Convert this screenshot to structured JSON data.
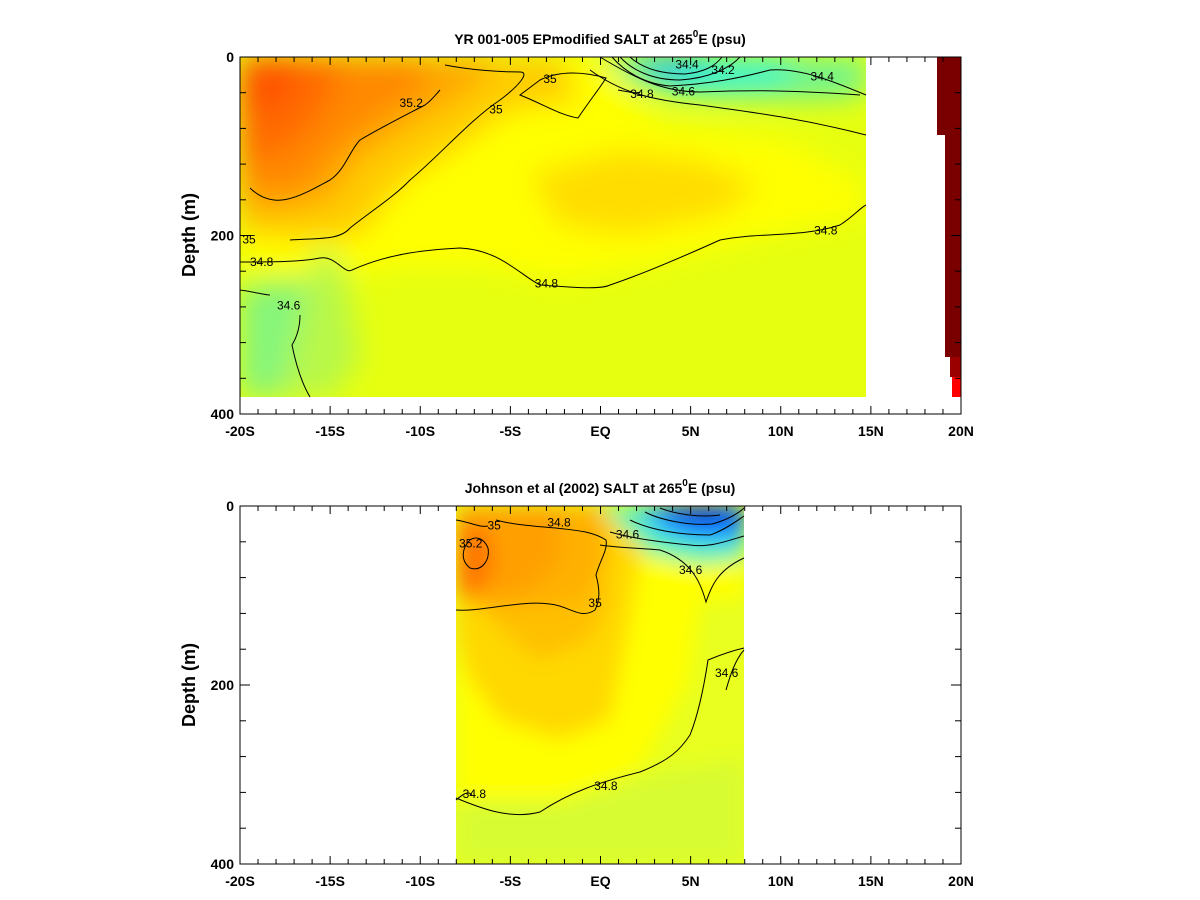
{
  "chart_data": [
    {
      "type": "heatmap",
      "title_prefix": "YR 001-005 EPmodified SALT at 265",
      "title_sup": "0",
      "title_suffix": "E (psu)",
      "ylabel": "Depth (m)",
      "xlim": [
        -20,
        20
      ],
      "ylim": [
        0,
        400
      ],
      "x_ticks": [
        "-20S",
        "-15S",
        "-10S",
        "-5S",
        "EQ",
        "5N",
        "10N",
        "15N",
        "20N"
      ],
      "x_tick_values": [
        -20,
        -15,
        -10,
        -5,
        0,
        5,
        10,
        15,
        20
      ],
      "y_ticks": [
        "0",
        "200",
        "400"
      ],
      "y_tick_values": [
        0,
        200,
        400
      ],
      "data_extent_lat": [
        -20,
        15
      ],
      "data_extent_depth": [
        0,
        380
      ],
      "contour_labels": [
        {
          "text": "35.2",
          "lat": -10.5,
          "depth": 55
        },
        {
          "text": "35",
          "lat": -2.8,
          "depth": 28
        },
        {
          "text": "35",
          "lat": -5.8,
          "depth": 62
        },
        {
          "text": "34.8",
          "lat": 2.3,
          "depth": 45
        },
        {
          "text": "34.6",
          "lat": 4.6,
          "depth": 42
        },
        {
          "text": "34.4",
          "lat": 4.8,
          "depth": 12
        },
        {
          "text": "34.2",
          "lat": 6.8,
          "depth": 18
        },
        {
          "text": "34.4",
          "lat": 12.3,
          "depth": 25
        },
        {
          "text": "35",
          "lat": -19.5,
          "depth": 208
        },
        {
          "text": "34.8",
          "lat": -18.8,
          "depth": 233
        },
        {
          "text": "34.8",
          "lat": -3.0,
          "depth": 257
        },
        {
          "text": "34.8",
          "lat": 12.5,
          "depth": 198
        },
        {
          "text": "34.6",
          "lat": -17.3,
          "depth": 282
        }
      ]
    },
    {
      "type": "heatmap",
      "title_prefix": "Johnson et al (2002) SALT at 265",
      "title_sup": "0",
      "title_suffix": "E (psu)",
      "ylabel": "Depth (m)",
      "xlim": [
        -20,
        20
      ],
      "ylim": [
        0,
        400
      ],
      "x_ticks": [
        "-20S",
        "-15S",
        "-10S",
        "-5S",
        "EQ",
        "5N",
        "10N",
        "15N",
        "20N"
      ],
      "x_tick_values": [
        -20,
        -15,
        -10,
        -5,
        0,
        5,
        10,
        15,
        20
      ],
      "y_ticks": [
        "0",
        "200",
        "400"
      ],
      "y_tick_values": [
        0,
        200,
        400
      ],
      "data_extent_lat": [
        -8,
        8
      ],
      "data_extent_depth": [
        0,
        400
      ],
      "contour_labels": [
        {
          "text": "35.2",
          "lat": -7.2,
          "depth": 45
        },
        {
          "text": "35",
          "lat": -5.9,
          "depth": 25
        },
        {
          "text": "34.8",
          "lat": -2.3,
          "depth": 22
        },
        {
          "text": "34.6",
          "lat": 1.5,
          "depth": 35
        },
        {
          "text": "34.6",
          "lat": 5.0,
          "depth": 75
        },
        {
          "text": "35",
          "lat": -0.3,
          "depth": 112
        },
        {
          "text": "34.6",
          "lat": 7.0,
          "depth": 190
        },
        {
          "text": "34.8",
          "lat": -7.0,
          "depth": 325
        },
        {
          "text": "34.8",
          "lat": 0.3,
          "depth": 316
        }
      ]
    }
  ],
  "colors": {
    "high": "#ff5a00",
    "mid_orange": "#ffa600",
    "mid_yellow": "#ffff00",
    "low_yellowgreen": "#cdfa30",
    "low_green": "#7af587",
    "low_cyan": "#36f5d5",
    "deep_blue": "#0040ff",
    "land_dark": "#7a0000",
    "land_red": "#ff0000"
  }
}
